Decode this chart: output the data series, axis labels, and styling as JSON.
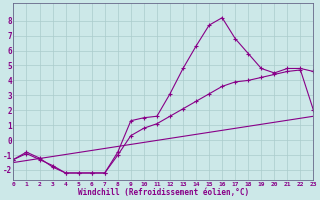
{
  "xlabel": "Windchill (Refroidissement éolien,°C)",
  "background_color": "#cce8e8",
  "line_color": "#880088",
  "grid_color": "#aacccc",
  "xlim": [
    0,
    23
  ],
  "ylim": [
    -2.7,
    9.2
  ],
  "xticks": [
    0,
    1,
    2,
    3,
    4,
    5,
    6,
    7,
    8,
    9,
    10,
    11,
    12,
    13,
    14,
    15,
    16,
    17,
    18,
    19,
    20,
    21,
    22,
    23
  ],
  "yticks": [
    -2,
    -1,
    0,
    1,
    2,
    3,
    4,
    5,
    6,
    7,
    8
  ],
  "curve1_x": [
    0,
    1,
    2,
    3,
    4,
    5,
    6,
    7,
    8,
    9,
    10,
    11,
    12,
    13,
    14,
    15,
    16,
    17,
    18,
    19,
    20,
    21,
    22,
    23
  ],
  "curve1_y": [
    -1.3,
    -0.8,
    -1.2,
    -1.8,
    -2.2,
    -2.2,
    -2.2,
    -2.2,
    -0.8,
    1.3,
    1.5,
    1.6,
    3.1,
    4.8,
    6.3,
    7.7,
    8.2,
    6.8,
    5.8,
    4.8,
    4.5,
    4.8,
    4.8,
    4.6
  ],
  "curve2_x": [
    0,
    1,
    2,
    3,
    4,
    5,
    6,
    7,
    8,
    9,
    10,
    11,
    12,
    13,
    14,
    15,
    16,
    17,
    18,
    19,
    20,
    21,
    22,
    23
  ],
  "curve2_y": [
    -1.3,
    -0.9,
    -1.3,
    -1.7,
    -2.2,
    -2.2,
    -2.2,
    -2.2,
    -1.0,
    0.3,
    0.8,
    1.1,
    1.6,
    2.1,
    2.6,
    3.1,
    3.6,
    3.9,
    4.0,
    4.2,
    4.4,
    4.6,
    4.7,
    2.0
  ],
  "curve3_x": [
    0,
    23
  ],
  "curve3_y": [
    -1.5,
    1.6
  ]
}
